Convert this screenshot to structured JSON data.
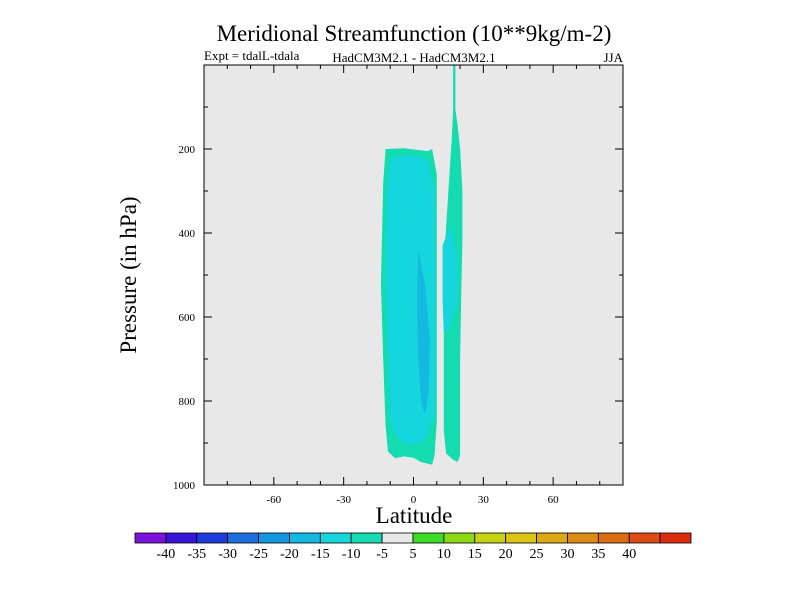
{
  "chart_data": {
    "type": "contour",
    "title": "Meridional Streamfunction (10**9kg/m-2)",
    "subtitle_left": "Expt = tdalL-tdala",
    "subtitle_center": "HadCM3M2.1 - HadCM3M2.1",
    "season": "JJA",
    "xlabel": "Latitude",
    "ylabel": "Pressure (in hPa)",
    "xlim": [
      -90,
      90
    ],
    "ylim": [
      1000,
      0
    ],
    "xticks": [
      -60,
      -30,
      0,
      30,
      60
    ],
    "yticks": [
      200,
      400,
      600,
      800,
      1000
    ],
    "background_color": "#e8e8e8",
    "colorbar": {
      "levels": [
        -45,
        -40,
        -35,
        -30,
        -25,
        -20,
        -15,
        -10,
        -5,
        5,
        10,
        15,
        20,
        25,
        30,
        35,
        40,
        45
      ],
      "tick_labels": [
        "-40",
        "-35",
        "-30",
        "-25",
        "-20",
        "-15",
        "-10",
        "-5",
        "5",
        "10",
        "15",
        "20",
        "25",
        "30",
        "35",
        "40"
      ],
      "colors": [
        "#7c14dc",
        "#3a14d8",
        "#1e3cdc",
        "#1e6ee0",
        "#1496e0",
        "#14b8e0",
        "#14d6dc",
        "#14dcb0",
        "#e8e8e8",
        "#3cdc28",
        "#8cd814",
        "#c4d414",
        "#dcc414",
        "#dca814",
        "#dc8c14",
        "#dc6c14",
        "#dc4c14",
        "#dc2c0c"
      ]
    },
    "contour_regions": [
      {
        "level": "-10 to -5",
        "color": "#14dcb0",
        "points": [
          [
            -12,
            200
          ],
          [
            -4,
            198
          ],
          [
            6,
            205
          ],
          [
            8,
            200
          ],
          [
            10,
            260
          ],
          [
            10,
            850
          ],
          [
            9,
            930
          ],
          [
            8,
            952
          ],
          [
            3,
            945
          ],
          [
            0,
            935
          ],
          [
            -4,
            932
          ],
          [
            -8,
            936
          ],
          [
            -11,
            920
          ],
          [
            -12,
            860
          ],
          [
            -13,
            700
          ],
          [
            -14,
            520
          ],
          [
            -13.5,
            400
          ],
          [
            -13,
            280
          ]
        ]
      },
      {
        "level": "-15 to -10",
        "color": "#14d6dc",
        "points": [
          [
            -10,
            222
          ],
          [
            -2,
            215
          ],
          [
            6,
            225
          ],
          [
            9,
            300
          ],
          [
            9.5,
            700
          ],
          [
            9,
            830
          ],
          [
            6,
            880
          ],
          [
            3,
            900
          ],
          [
            0,
            905
          ],
          [
            -4,
            900
          ],
          [
            -8,
            880
          ],
          [
            -10,
            840
          ],
          [
            -11,
            700
          ],
          [
            -12,
            520
          ],
          [
            -12,
            400
          ],
          [
            -11,
            280
          ]
        ]
      },
      {
        "level": "-20 to -15",
        "color": "#14b8e0",
        "points": [
          [
            2,
            440
          ],
          [
            5,
            525
          ],
          [
            7,
            655
          ],
          [
            6.5,
            780
          ],
          [
            5,
            830
          ],
          [
            3.5,
            810
          ],
          [
            2,
            700
          ],
          [
            1.5,
            550
          ]
        ]
      },
      {
        "level": "-10 to -5",
        "color": "#14dcb0",
        "points": [
          [
            17,
            0
          ],
          [
            18,
            0
          ],
          [
            18,
            105
          ],
          [
            19,
            145
          ],
          [
            20,
            200
          ],
          [
            21,
            300
          ],
          [
            21,
            420
          ],
          [
            20.5,
            550
          ],
          [
            20,
            700
          ],
          [
            20,
            800
          ],
          [
            20,
            930
          ],
          [
            19,
            945
          ],
          [
            17,
            940
          ],
          [
            14,
            925
          ],
          [
            13,
            870
          ],
          [
            13,
            750
          ],
          [
            13,
            600
          ],
          [
            13.5,
            430
          ],
          [
            15,
            300
          ],
          [
            16.5,
            170
          ],
          [
            17,
            110
          ]
        ]
      },
      {
        "level": "-15 to -10",
        "color": "#14d6dc",
        "points": [
          [
            12.5,
            430
          ],
          [
            16,
            380
          ],
          [
            19,
            470
          ],
          [
            19,
            560
          ],
          [
            16,
            620
          ],
          [
            13,
            640
          ],
          [
            12.5,
            560
          ]
        ]
      }
    ]
  }
}
